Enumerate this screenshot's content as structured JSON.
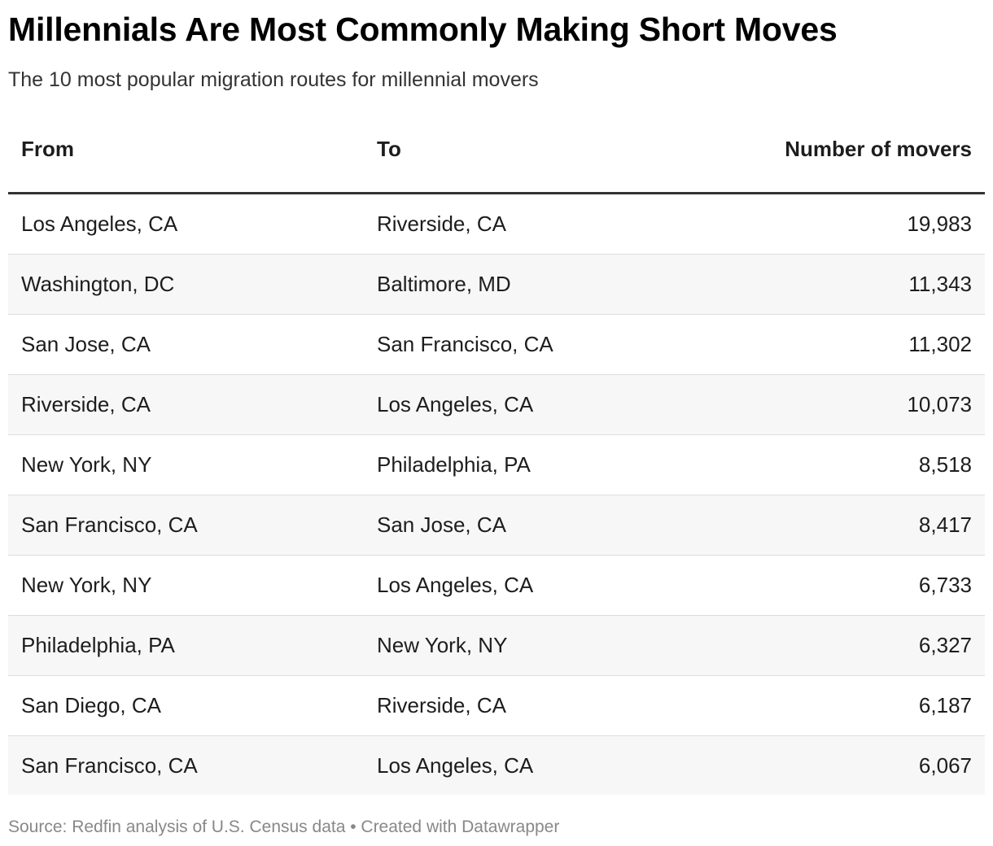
{
  "header": {
    "title": "Millennials Are Most Commonly Making Short Moves",
    "subtitle": "The 10 most popular migration routes for millennial movers"
  },
  "chart_data": {
    "type": "table",
    "columns": [
      "From",
      "To",
      "Number of movers"
    ],
    "rows": [
      {
        "from": "Los Angeles, CA",
        "to": "Riverside, CA",
        "movers": "19,983"
      },
      {
        "from": "Washington, DC",
        "to": "Baltimore, MD",
        "movers": "11,343"
      },
      {
        "from": "San Jose, CA",
        "to": "San Francisco, CA",
        "movers": "11,302"
      },
      {
        "from": "Riverside, CA",
        "to": "Los Angeles, CA",
        "movers": "10,073"
      },
      {
        "from": "New York, NY",
        "to": "Philadelphia, PA",
        "movers": "8,518"
      },
      {
        "from": "San Francisco, CA",
        "to": "San Jose, CA",
        "movers": "8,417"
      },
      {
        "from": "New York, NY",
        "to": "Los Angeles, CA",
        "movers": "6,733"
      },
      {
        "from": "Philadelphia, PA",
        "to": "New York, NY",
        "movers": "6,327"
      },
      {
        "from": "San Diego, CA",
        "to": "Riverside, CA",
        "movers": "6,187"
      },
      {
        "from": "San Francisco, CA",
        "to": "Los Angeles, CA",
        "movers": "6,067"
      }
    ]
  },
  "footer": {
    "source": "Source: Redfin analysis of U.S. Census data • Created with Datawrapper"
  },
  "colors": {
    "text": "#1d1d1d",
    "header_rule": "#333333",
    "row_divider": "#dddddd",
    "alt_row_bg": "#f7f7f7",
    "footer_text": "#888888"
  }
}
